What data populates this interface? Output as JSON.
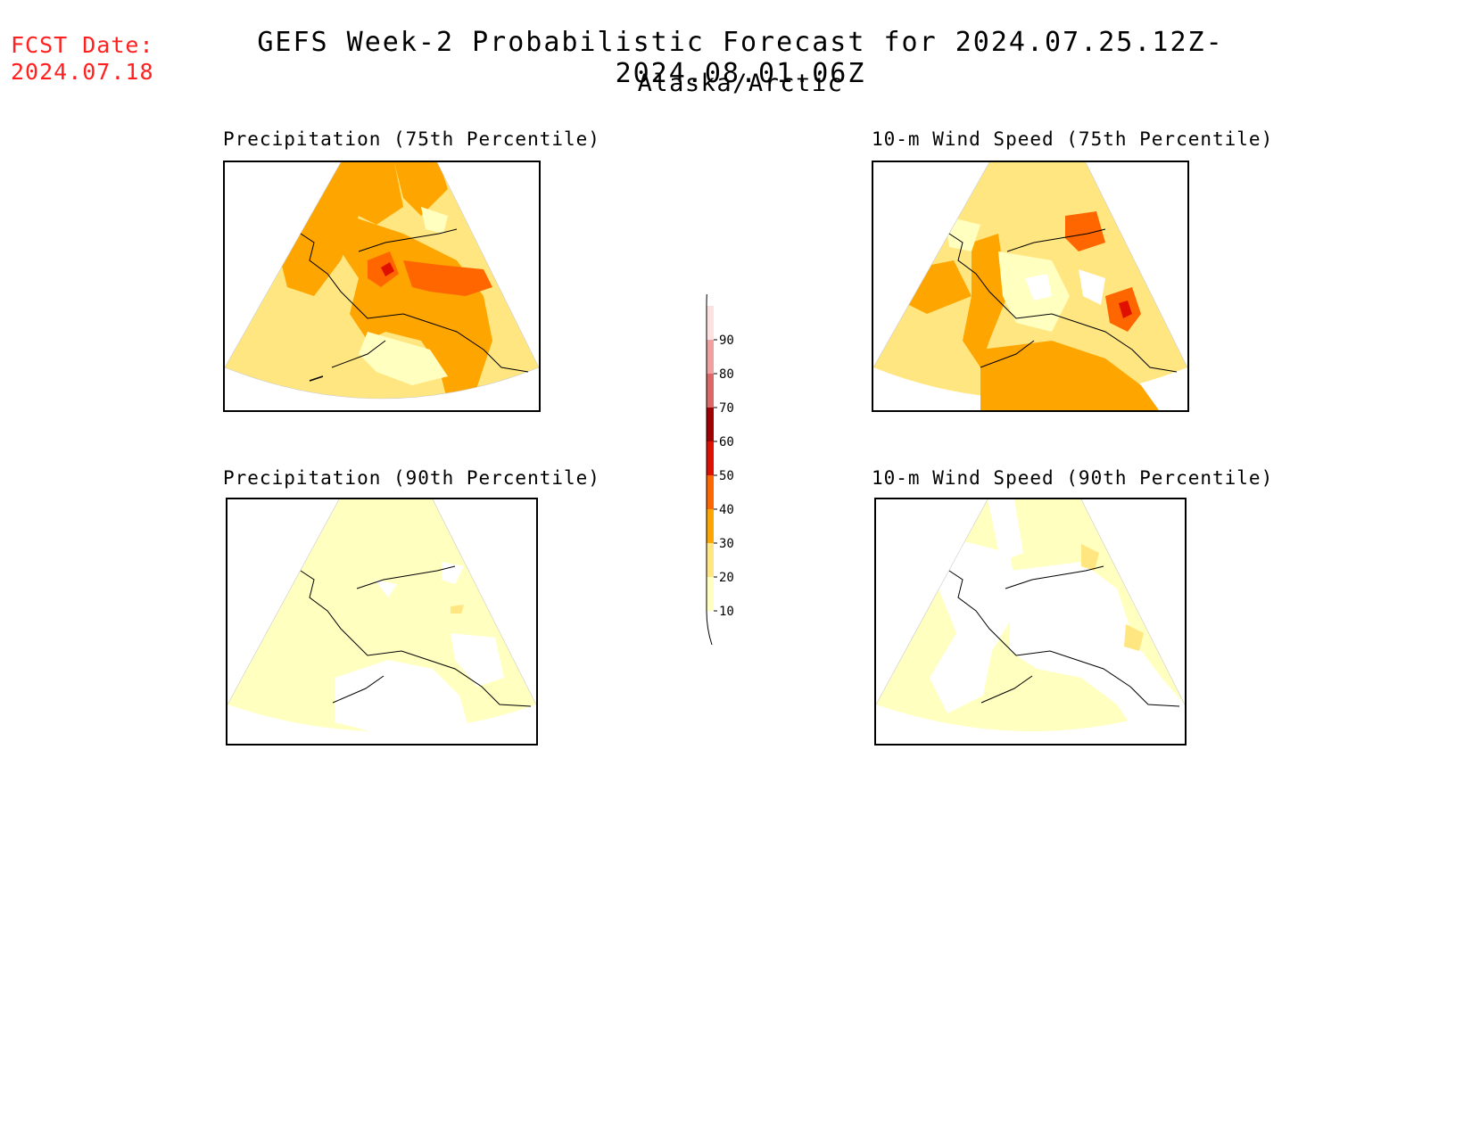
{
  "header": {
    "fcst_date_label": "FCST Date:",
    "fcst_date_value": "2024.07.18",
    "title": "GEFS Week-2 Probabilistic Forecast for 2024.07.25.12Z-2024.08.01.06Z",
    "subtitle": "Alaska/Arctic"
  },
  "panels": [
    {
      "id": "precip-75",
      "title": "Precipitation (75th Percentile)"
    },
    {
      "id": "wind-75",
      "title": "10-m Wind Speed (75th Percentile)"
    },
    {
      "id": "precip-90",
      "title": "Precipitation (90th Percentile)"
    },
    {
      "id": "wind-90",
      "title": "10-m Wind Speed (90th Percentile)"
    }
  ],
  "colorbar": {
    "levels": [
      10,
      20,
      30,
      40,
      50,
      60,
      70,
      80,
      90
    ],
    "colors": [
      "#ffffc0",
      "#ffe680",
      "#ffa500",
      "#ff6600",
      "#e01000",
      "#a00000",
      "#dd6666",
      "#f0a0a0",
      "#fde0e0"
    ]
  },
  "colors": {
    "fcst_date": "#ff2020",
    "coast": "#000000"
  }
}
